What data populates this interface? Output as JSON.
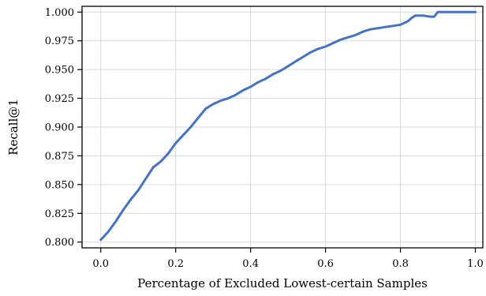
{
  "chart_data": {
    "type": "line",
    "title": "",
    "xlabel": "Percentage of Excluded Lowest-certain Samples",
    "ylabel": "Recall@1",
    "xlim": [
      -0.05,
      1.02
    ],
    "ylim": [
      0.795,
      1.005
    ],
    "grid": true,
    "legend": "none",
    "x_ticks": [
      0.0,
      0.2,
      0.4,
      0.6,
      0.8,
      1.0
    ],
    "x_tick_labels": [
      "0.0",
      "0.2",
      "0.4",
      "0.6",
      "0.8",
      "1.0"
    ],
    "y_ticks": [
      0.8,
      0.825,
      0.85,
      0.875,
      0.9,
      0.925,
      0.95,
      0.975,
      1.0
    ],
    "y_tick_labels": [
      "0.800",
      "0.825",
      "0.850",
      "0.875",
      "0.900",
      "0.925",
      "0.950",
      "0.975",
      "1.000"
    ],
    "series": [
      {
        "color": "#4472c4",
        "x": [
          0.0,
          0.02,
          0.04,
          0.06,
          0.08,
          0.1,
          0.12,
          0.14,
          0.16,
          0.18,
          0.2,
          0.22,
          0.24,
          0.26,
          0.28,
          0.3,
          0.32,
          0.34,
          0.36,
          0.38,
          0.4,
          0.42,
          0.44,
          0.46,
          0.48,
          0.5,
          0.52,
          0.54,
          0.56,
          0.58,
          0.6,
          0.62,
          0.64,
          0.66,
          0.68,
          0.7,
          0.72,
          0.74,
          0.76,
          0.78,
          0.8,
          0.82,
          0.83,
          0.84,
          0.86,
          0.88,
          0.89,
          0.9,
          0.95,
          1.0
        ],
        "y": [
          0.802,
          0.809,
          0.818,
          0.828,
          0.837,
          0.845,
          0.855,
          0.865,
          0.87,
          0.877,
          0.886,
          0.893,
          0.9,
          0.908,
          0.916,
          0.92,
          0.923,
          0.925,
          0.928,
          0.932,
          0.935,
          0.939,
          0.942,
          0.946,
          0.949,
          0.953,
          0.957,
          0.961,
          0.965,
          0.968,
          0.97,
          0.973,
          0.976,
          0.978,
          0.98,
          0.983,
          0.985,
          0.986,
          0.987,
          0.988,
          0.989,
          0.992,
          0.995,
          0.997,
          0.997,
          0.996,
          0.996,
          1.0,
          1.0,
          1.0
        ]
      }
    ]
  }
}
